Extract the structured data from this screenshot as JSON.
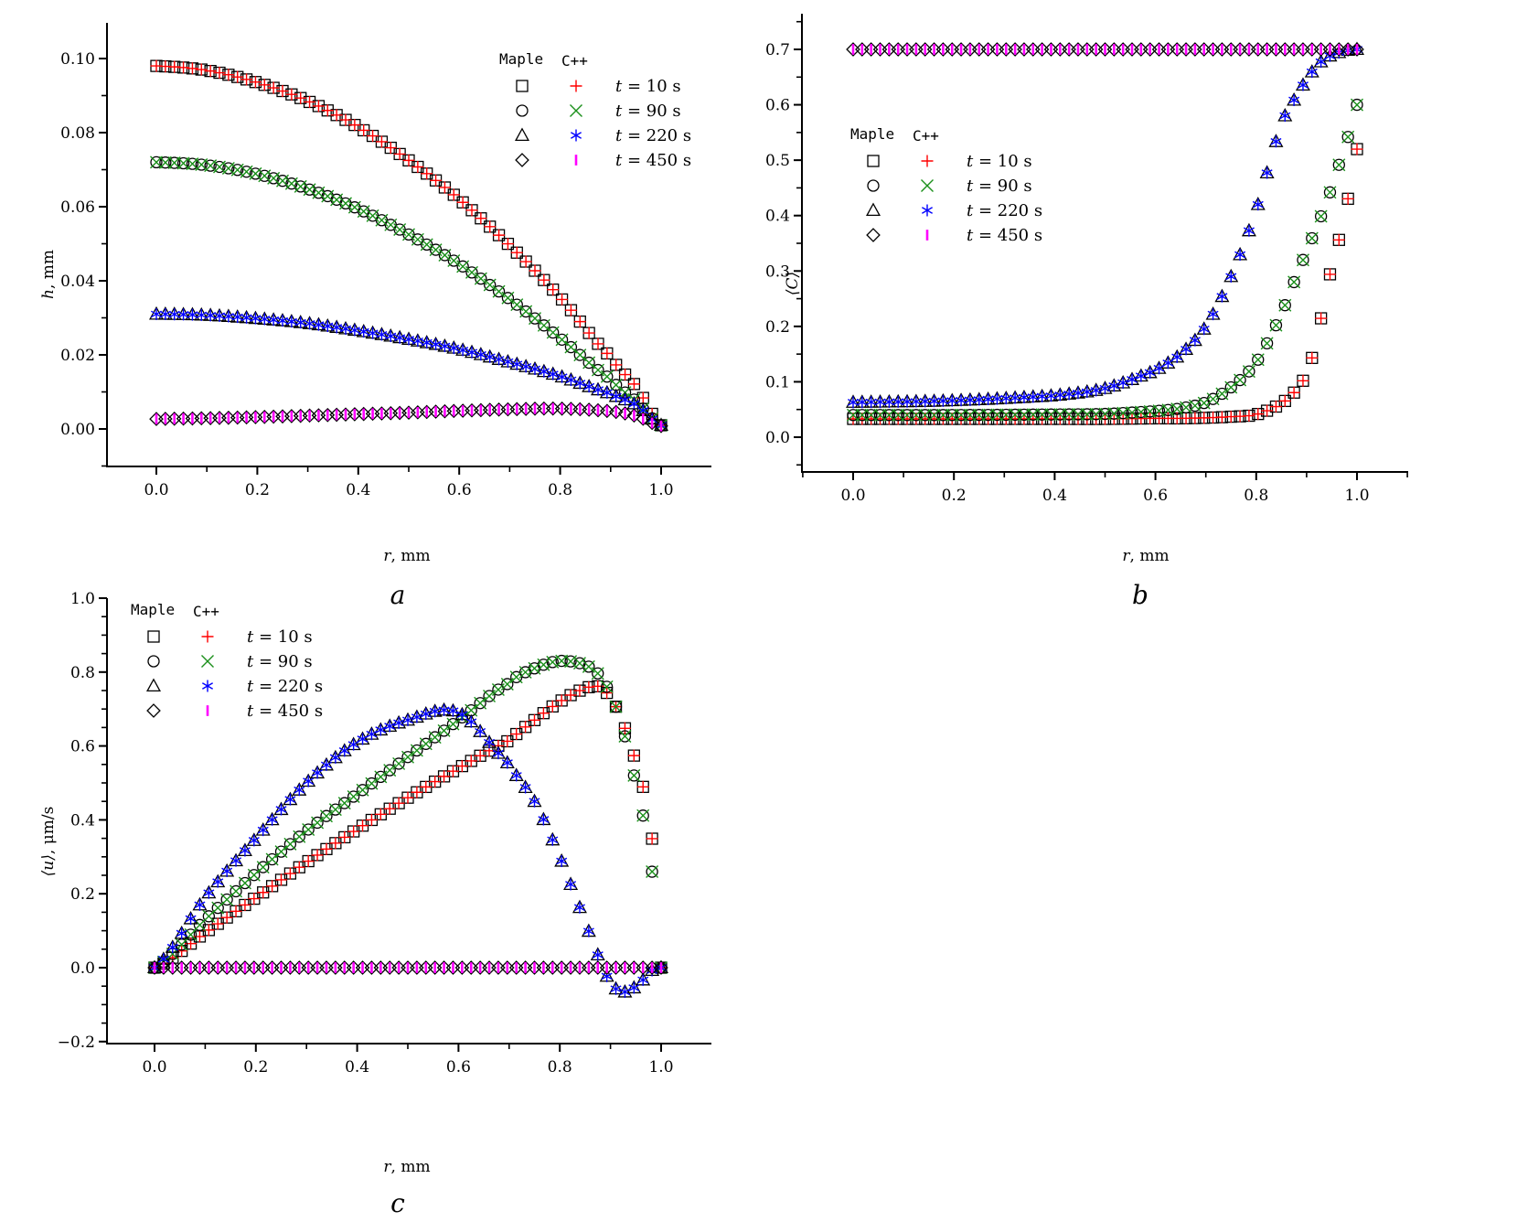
{
  "figure": {
    "legend_headers": {
      "maple": "Maple",
      "cpp": "C++"
    },
    "time_labels": [
      {
        "prefix": "t",
        "rest": " = 10 s"
      },
      {
        "prefix": "t",
        "rest": " = 90 s"
      },
      {
        "prefix": "t",
        "rest": " = 220 s"
      },
      {
        "prefix": "t",
        "rest": " = 450 s"
      }
    ],
    "series_styles": [
      {
        "name": "t = 10 s",
        "maple_marker": "square-icon",
        "cpp_marker": "plus-icon",
        "cpp_color": "#ff0000"
      },
      {
        "name": "t = 90 s",
        "maple_marker": "circle-icon",
        "cpp_marker": "cross-icon",
        "cpp_color": "#1a8f1a"
      },
      {
        "name": "t = 220 s",
        "maple_marker": "triangle-icon",
        "cpp_marker": "asterisk-icon",
        "cpp_color": "#0000ff"
      },
      {
        "name": "t = 450 s",
        "maple_marker": "diamond-icon",
        "cpp_marker": "vbar-icon",
        "cpp_color": "#ff00ff"
      }
    ]
  },
  "chart_data": [
    {
      "id": "a",
      "type": "scatter",
      "panel_label": "a",
      "title": "",
      "xlabel": {
        "var": "r",
        "unit": ", mm"
      },
      "ylabel": {
        "var": "h",
        "unit": ", mm"
      },
      "xlim": [
        -0.1,
        1.1
      ],
      "ylim": [
        -0.01,
        0.11
      ],
      "xticks": [
        "0.0",
        "0.2",
        "0.4",
        "0.6",
        "0.8",
        "1.0"
      ],
      "xtick_values": [
        0.0,
        0.2,
        0.4,
        0.6,
        0.8,
        1.0
      ],
      "yticks": [
        "0.00",
        "0.02",
        "0.04",
        "0.06",
        "0.08",
        "0.10"
      ],
      "ytick_values": [
        0.0,
        0.02,
        0.04,
        0.06,
        0.08,
        0.1
      ],
      "legend_position": "top-right",
      "grid": false,
      "x": [
        0.0,
        0.1,
        0.2,
        0.3,
        0.4,
        0.5,
        0.6,
        0.7,
        0.8,
        0.9,
        0.95,
        1.0
      ],
      "series": [
        {
          "name": "t = 10 s",
          "values": [
            0.098,
            0.0968,
            0.0935,
            0.0885,
            0.0815,
            0.0725,
            0.062,
            0.0495,
            0.0355,
            0.0195,
            0.0115,
            0.001
          ]
        },
        {
          "name": "t = 90 s",
          "values": [
            0.072,
            0.0712,
            0.0688,
            0.0648,
            0.0594,
            0.0525,
            0.0445,
            0.035,
            0.0245,
            0.0135,
            0.0075,
            0.001
          ]
        },
        {
          "name": "t = 220 s",
          "values": [
            0.031,
            0.0307,
            0.0298,
            0.0285,
            0.0265,
            0.0242,
            0.0215,
            0.018,
            0.0142,
            0.0095,
            0.0065,
            0.001
          ]
        },
        {
          "name": "t = 450 s",
          "values": [
            0.0027,
            0.0029,
            0.0032,
            0.0036,
            0.004,
            0.0044,
            0.0049,
            0.0053,
            0.0055,
            0.0048,
            0.0035,
            0.0008
          ]
        }
      ]
    },
    {
      "id": "b",
      "type": "scatter",
      "panel_label": "b",
      "title": "",
      "xlabel": {
        "var": "r",
        "unit": ", mm"
      },
      "ylabel": {
        "var": "⟨C⟩",
        "unit": ""
      },
      "xlim": [
        -0.1,
        1.1
      ],
      "ylim": [
        -0.06,
        0.76
      ],
      "xticks": [
        "0.0",
        "0.2",
        "0.4",
        "0.6",
        "0.8",
        "1.0"
      ],
      "xtick_values": [
        0.0,
        0.2,
        0.4,
        0.6,
        0.8,
        1.0
      ],
      "yticks": [
        "0.0",
        "0.1",
        "0.2",
        "0.3",
        "0.4",
        "0.5",
        "0.6",
        "0.7"
      ],
      "ytick_values": [
        0.0,
        0.1,
        0.2,
        0.3,
        0.4,
        0.5,
        0.6,
        0.7
      ],
      "legend_position": "center-left",
      "grid": false,
      "x": [
        0.0,
        0.2,
        0.4,
        0.5,
        0.6,
        0.65,
        0.7,
        0.75,
        0.8,
        0.85,
        0.88,
        0.9,
        0.92,
        0.94,
        0.96,
        0.98,
        1.0
      ],
      "series": [
        {
          "name": "t = 10 s",
          "values": [
            0.033,
            0.033,
            0.033,
            0.033,
            0.034,
            0.034,
            0.035,
            0.037,
            0.041,
            0.06,
            0.085,
            0.115,
            0.175,
            0.27,
            0.34,
            0.42,
            0.52
          ]
        },
        {
          "name": "t = 90 s",
          "values": [
            0.04,
            0.04,
            0.041,
            0.042,
            0.047,
            0.052,
            0.063,
            0.09,
            0.135,
            0.22,
            0.29,
            0.335,
            0.38,
            0.425,
            0.48,
            0.535,
            0.6
          ]
        },
        {
          "name": "t = 220 s",
          "values": [
            0.063,
            0.066,
            0.075,
            0.088,
            0.12,
            0.15,
            0.2,
            0.29,
            0.41,
            0.56,
            0.615,
            0.645,
            0.67,
            0.685,
            0.693,
            0.698,
            0.7
          ]
        },
        {
          "name": "t = 450 s",
          "values": [
            0.7,
            0.7,
            0.7,
            0.7,
            0.7,
            0.7,
            0.7,
            0.7,
            0.7,
            0.7,
            0.7,
            0.7,
            0.7,
            0.7,
            0.7,
            0.7,
            0.7
          ]
        }
      ]
    },
    {
      "id": "c",
      "type": "scatter",
      "panel_label": "c",
      "title": "",
      "xlabel": {
        "var": "r",
        "unit": ", mm"
      },
      "ylabel": {
        "var": "⟨u⟩",
        "unit": ", μm/s"
      },
      "xlim": [
        -0.1,
        1.1
      ],
      "ylim": [
        -0.2,
        1.0
      ],
      "xticks": [
        "0.0",
        "0.2",
        "0.4",
        "0.6",
        "0.8",
        "1.0"
      ],
      "xtick_values": [
        0.0,
        0.2,
        0.4,
        0.6,
        0.8,
        1.0
      ],
      "yticks": [
        "−0.2",
        "0.0",
        "0.2",
        "0.4",
        "0.6",
        "0.8",
        "1.0"
      ],
      "ytick_values": [
        -0.2,
        0.0,
        0.2,
        0.4,
        0.6,
        0.8,
        1.0
      ],
      "legend_position": "top-left",
      "grid": false,
      "x": [
        0.0,
        0.1,
        0.2,
        0.3,
        0.4,
        0.5,
        0.6,
        0.7,
        0.75,
        0.8,
        0.85,
        0.88,
        0.9,
        0.92,
        0.94,
        0.96,
        0.97,
        0.98,
        0.99,
        1.0
      ],
      "series": [
        {
          "name": "t = 10 s",
          "values": [
            0.0,
            0.095,
            0.19,
            0.285,
            0.375,
            0.46,
            0.54,
            0.615,
            0.67,
            0.72,
            0.755,
            0.76,
            0.73,
            0.68,
            0.6,
            0.52,
            0.45,
            0.38,
            0.2,
            0.0
          ]
        },
        {
          "name": "t = 90 s",
          "values": [
            0.0,
            0.13,
            0.255,
            0.37,
            0.47,
            0.57,
            0.67,
            0.77,
            0.81,
            0.83,
            0.82,
            0.79,
            0.74,
            0.67,
            0.56,
            0.44,
            0.38,
            0.29,
            0.13,
            0.0
          ]
        },
        {
          "name": "t = 220 s",
          "values": [
            0.0,
            0.19,
            0.35,
            0.5,
            0.61,
            0.67,
            0.69,
            0.55,
            0.45,
            0.3,
            0.13,
            0.02,
            -0.04,
            -0.065,
            -0.06,
            -0.04,
            -0.025,
            -0.01,
            0.0,
            0.0
          ]
        },
        {
          "name": "t = 450 s",
          "values": [
            0.0,
            0.0,
            0.0,
            0.0,
            0.0,
            0.0,
            0.0,
            0.0,
            0.0,
            0.0,
            0.0,
            0.0,
            0.0,
            0.0,
            0.0,
            0.0,
            0.0,
            0.0,
            0.0,
            0.0
          ]
        }
      ]
    }
  ]
}
